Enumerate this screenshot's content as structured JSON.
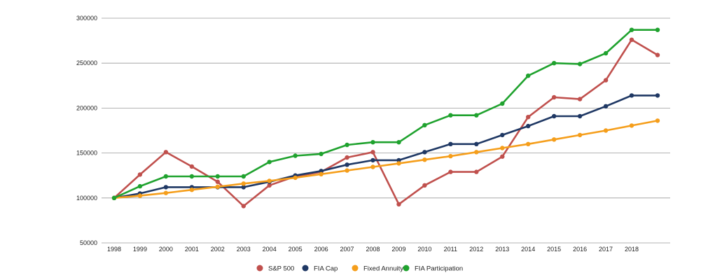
{
  "chart_data": {
    "type": "line",
    "title": "",
    "xlabel": "",
    "ylabel": "",
    "categories": [
      "1998",
      "1999",
      "2000",
      "2001",
      "2002",
      "2003",
      "2004",
      "2005",
      "2006",
      "2007",
      "2008",
      "2009",
      "2010",
      "2011",
      "2012",
      "2013",
      "2014",
      "2015",
      "2016",
      "2017",
      "2018",
      ""
    ],
    "ylim": [
      50000,
      300000
    ],
    "yticks": [
      50000,
      100000,
      150000,
      200000,
      250000,
      300000
    ],
    "ytick_labels": [
      "50000",
      "100000",
      "150000",
      "200000",
      "250000",
      "300000"
    ],
    "grid": true,
    "legend_position": "bottom",
    "series": [
      {
        "name": "S&P 500",
        "color": "#c0504d",
        "values": [
          100000,
          126000,
          151000,
          135000,
          118000,
          91000,
          114000,
          124000,
          129000,
          145000,
          151000,
          93000,
          114000,
          129000,
          129000,
          146000,
          190000,
          212000,
          210000,
          231000,
          276000,
          259000
        ]
      },
      {
        "name": "FIA Cap",
        "color": "#1f3864",
        "values": [
          100000,
          105000,
          112000,
          112000,
          112000,
          112000,
          118000,
          125000,
          130000,
          137000,
          142000,
          142000,
          151000,
          160000,
          160000,
          170000,
          180000,
          191000,
          191000,
          202000,
          214000,
          214000
        ]
      },
      {
        "name": "Fixed Annuity",
        "color": "#f59e1b",
        "values": [
          100000,
          102500,
          105500,
          109000,
          112500,
          116000,
          119000,
          122500,
          126500,
          130500,
          134500,
          138500,
          142500,
          146500,
          151000,
          155500,
          160000,
          165000,
          170000,
          175000,
          180500,
          186000
        ]
      },
      {
        "name": "FIA Participation",
        "color": "#1fa22e",
        "values": [
          100000,
          113000,
          124000,
          124000,
          124000,
          124000,
          140000,
          147000,
          149000,
          159000,
          162000,
          162000,
          181000,
          192000,
          192000,
          205000,
          236000,
          250000,
          249000,
          261000,
          287000,
          287000
        ]
      }
    ]
  }
}
